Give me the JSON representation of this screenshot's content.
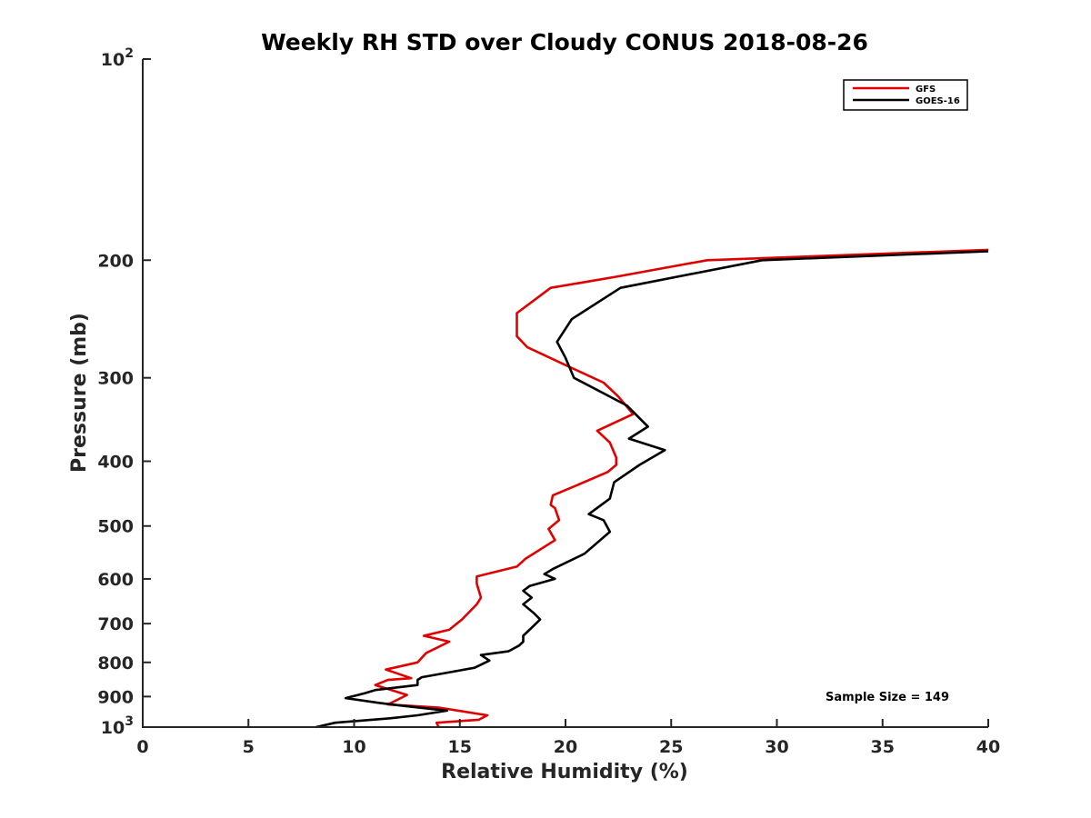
{
  "chart_data": {
    "type": "line",
    "title": "Weekly RH STD over Cloudy CONUS 2018-08-26",
    "xlabel": "Relative Humidity (%)",
    "ylabel": "Pressure (mb)",
    "xlim": [
      0,
      40
    ],
    "ylim": [
      100,
      1000
    ],
    "y_scale": "log",
    "y_reversed": true,
    "x_ticks": [
      0,
      5,
      10,
      15,
      20,
      25,
      30,
      35,
      40
    ],
    "x_tick_labels": [
      "0",
      "5",
      "10",
      "15",
      "20",
      "25",
      "30",
      "35",
      "40"
    ],
    "y_ticks": [
      100,
      200,
      300,
      400,
      500,
      600,
      700,
      800,
      900,
      1000
    ],
    "y_tick_labels": [
      {
        "base": "10",
        "exp": "2"
      },
      {
        "base": "200",
        "exp": ""
      },
      {
        "base": "300",
        "exp": ""
      },
      {
        "base": "400",
        "exp": ""
      },
      {
        "base": "500",
        "exp": ""
      },
      {
        "base": "600",
        "exp": ""
      },
      {
        "base": "700",
        "exp": ""
      },
      {
        "base": "800",
        "exp": ""
      },
      {
        "base": "900",
        "exp": ""
      },
      {
        "base": "10",
        "exp": "3"
      }
    ],
    "grid": false,
    "legend_position": "top-right",
    "annotation": "Sample Size = 149",
    "series": [
      {
        "name": "GFS",
        "color": "#e00000",
        "points": [
          [
            14.0,
            1000
          ],
          [
            13.9,
            985
          ],
          [
            15.9,
            975
          ],
          [
            16.3,
            960
          ],
          [
            14.0,
            935
          ],
          [
            11.6,
            925
          ],
          [
            12.5,
            895
          ],
          [
            11.0,
            865
          ],
          [
            11.6,
            850
          ],
          [
            12.7,
            845
          ],
          [
            11.5,
            820
          ],
          [
            13.0,
            800
          ],
          [
            13.4,
            775
          ],
          [
            14.5,
            745
          ],
          [
            13.3,
            730
          ],
          [
            14.5,
            715
          ],
          [
            15.1,
            690
          ],
          [
            15.4,
            675
          ],
          [
            15.8,
            655
          ],
          [
            16.0,
            640
          ],
          [
            15.8,
            610
          ],
          [
            15.8,
            595
          ],
          [
            17.7,
            575
          ],
          [
            18.1,
            560
          ],
          [
            19.3,
            530
          ],
          [
            19.5,
            525
          ],
          [
            19.2,
            505
          ],
          [
            19.7,
            490
          ],
          [
            19.5,
            470
          ],
          [
            19.3,
            465
          ],
          [
            19.4,
            450
          ],
          [
            20.5,
            435
          ],
          [
            22.0,
            415
          ],
          [
            22.4,
            405
          ],
          [
            22.4,
            395
          ],
          [
            22.1,
            375
          ],
          [
            21.5,
            360
          ],
          [
            23.2,
            340
          ],
          [
            22.5,
            320
          ],
          [
            21.8,
            305
          ],
          [
            20.3,
            290
          ],
          [
            18.2,
            270
          ],
          [
            17.7,
            260
          ],
          [
            17.7,
            240
          ],
          [
            19.3,
            220
          ],
          [
            22.3,
            212
          ],
          [
            26.7,
            200
          ],
          [
            40.0,
            193
          ]
        ]
      },
      {
        "name": "GOES-16",
        "color": "#000000",
        "points": [
          [
            8.2,
            1000
          ],
          [
            8.8,
            990
          ],
          [
            9.1,
            985
          ],
          [
            11.7,
            970
          ],
          [
            13.0,
            960
          ],
          [
            14.4,
            945
          ],
          [
            12.4,
            930
          ],
          [
            11.2,
            920
          ],
          [
            9.6,
            905
          ],
          [
            10.5,
            890
          ],
          [
            11.0,
            880
          ],
          [
            13.0,
            865
          ],
          [
            13.0,
            850
          ],
          [
            13.2,
            842
          ],
          [
            15.7,
            815
          ],
          [
            16.4,
            795
          ],
          [
            16.0,
            780
          ],
          [
            17.3,
            770
          ],
          [
            17.8,
            755
          ],
          [
            18.0,
            745
          ],
          [
            18.0,
            730
          ],
          [
            18.5,
            705
          ],
          [
            18.8,
            690
          ],
          [
            18.5,
            675
          ],
          [
            18.0,
            655
          ],
          [
            18.4,
            640
          ],
          [
            18.0,
            625
          ],
          [
            18.3,
            615
          ],
          [
            19.5,
            600
          ],
          [
            19.0,
            590
          ],
          [
            19.4,
            580
          ],
          [
            20.9,
            550
          ],
          [
            22.1,
            510
          ],
          [
            21.8,
            490
          ],
          [
            21.1,
            480
          ],
          [
            22.1,
            455
          ],
          [
            22.3,
            430
          ],
          [
            23.5,
            405
          ],
          [
            24.7,
            385
          ],
          [
            23.0,
            370
          ],
          [
            23.9,
            355
          ],
          [
            22.9,
            330
          ],
          [
            20.4,
            300
          ],
          [
            20.0,
            280
          ],
          [
            19.6,
            265
          ],
          [
            20.3,
            245
          ],
          [
            22.6,
            220
          ],
          [
            29.3,
            200
          ],
          [
            40.0,
            194
          ]
        ]
      }
    ]
  }
}
